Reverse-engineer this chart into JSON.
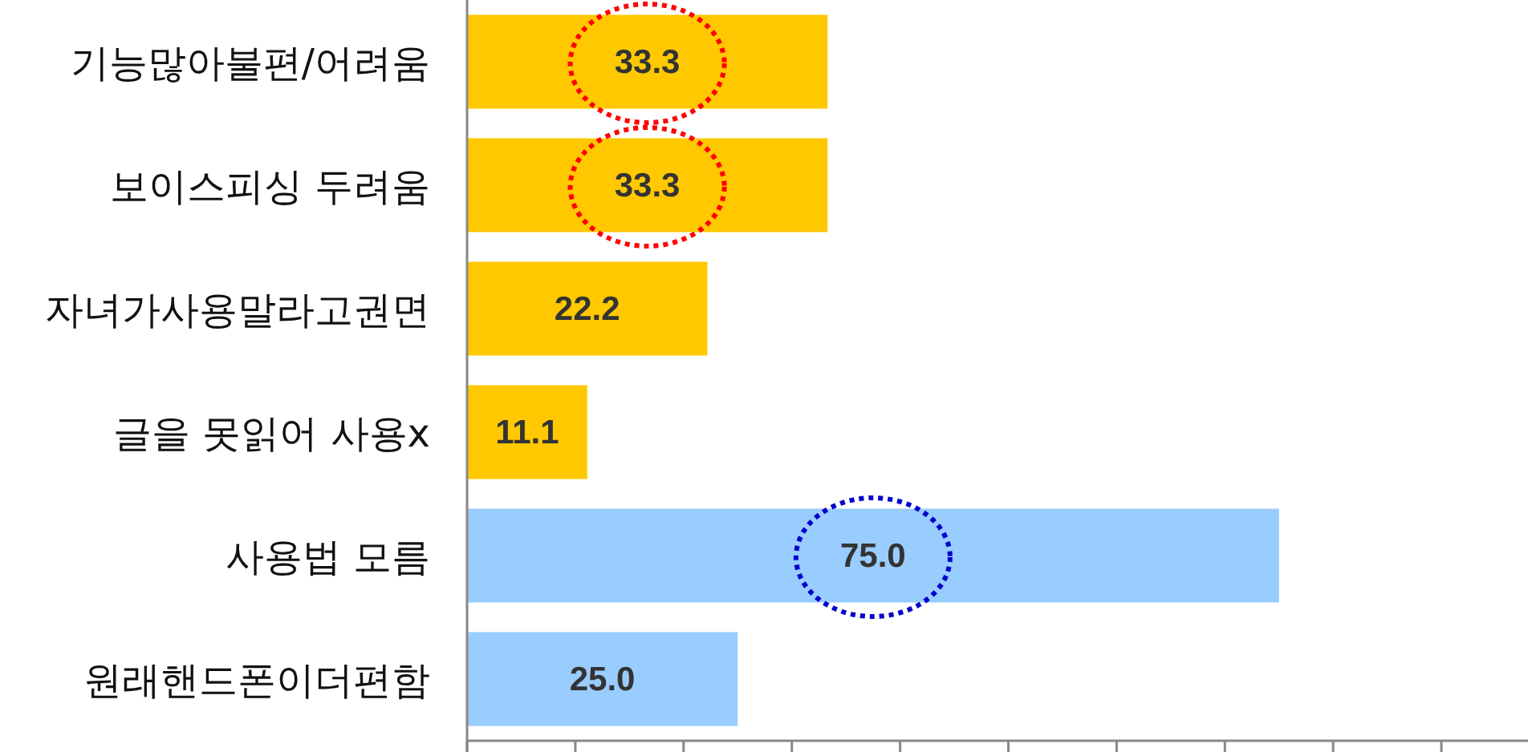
{
  "chart_data": {
    "type": "bar",
    "orientation": "horizontal",
    "categories": [
      "기능많아불편/어려움",
      "보이스피싱 두려움",
      "자녀가사용말라고권면",
      "글을 못읽어 사용x",
      "사용법 모름",
      "원래핸드폰이더편함"
    ],
    "values": [
      33.3,
      33.3,
      22.2,
      11.1,
      75.0,
      25.0
    ],
    "colors": [
      "#ffc800",
      "#ffc800",
      "#ffc800",
      "#ffc800",
      "#99ccff",
      "#99ccff"
    ],
    "value_labels": [
      "33.3",
      "33.3",
      "22.2",
      "11.1",
      "75.0",
      "25.0"
    ],
    "xlim": [
      0,
      98
    ],
    "xticks": [
      {
        "value": 0,
        "label": null
      },
      {
        "value": 10,
        "label": null
      },
      {
        "value": 20,
        "label": null
      },
      {
        "value": 30,
        "label": null
      },
      {
        "value": 40,
        "label": null
      },
      {
        "value": 50,
        "label": null
      },
      {
        "value": 60,
        "label": null
      },
      {
        "value": 70,
        "label": null
      },
      {
        "value": 80,
        "label": null
      },
      {
        "value": 90,
        "label": null
      }
    ],
    "tick_labels": "y"
  }
}
